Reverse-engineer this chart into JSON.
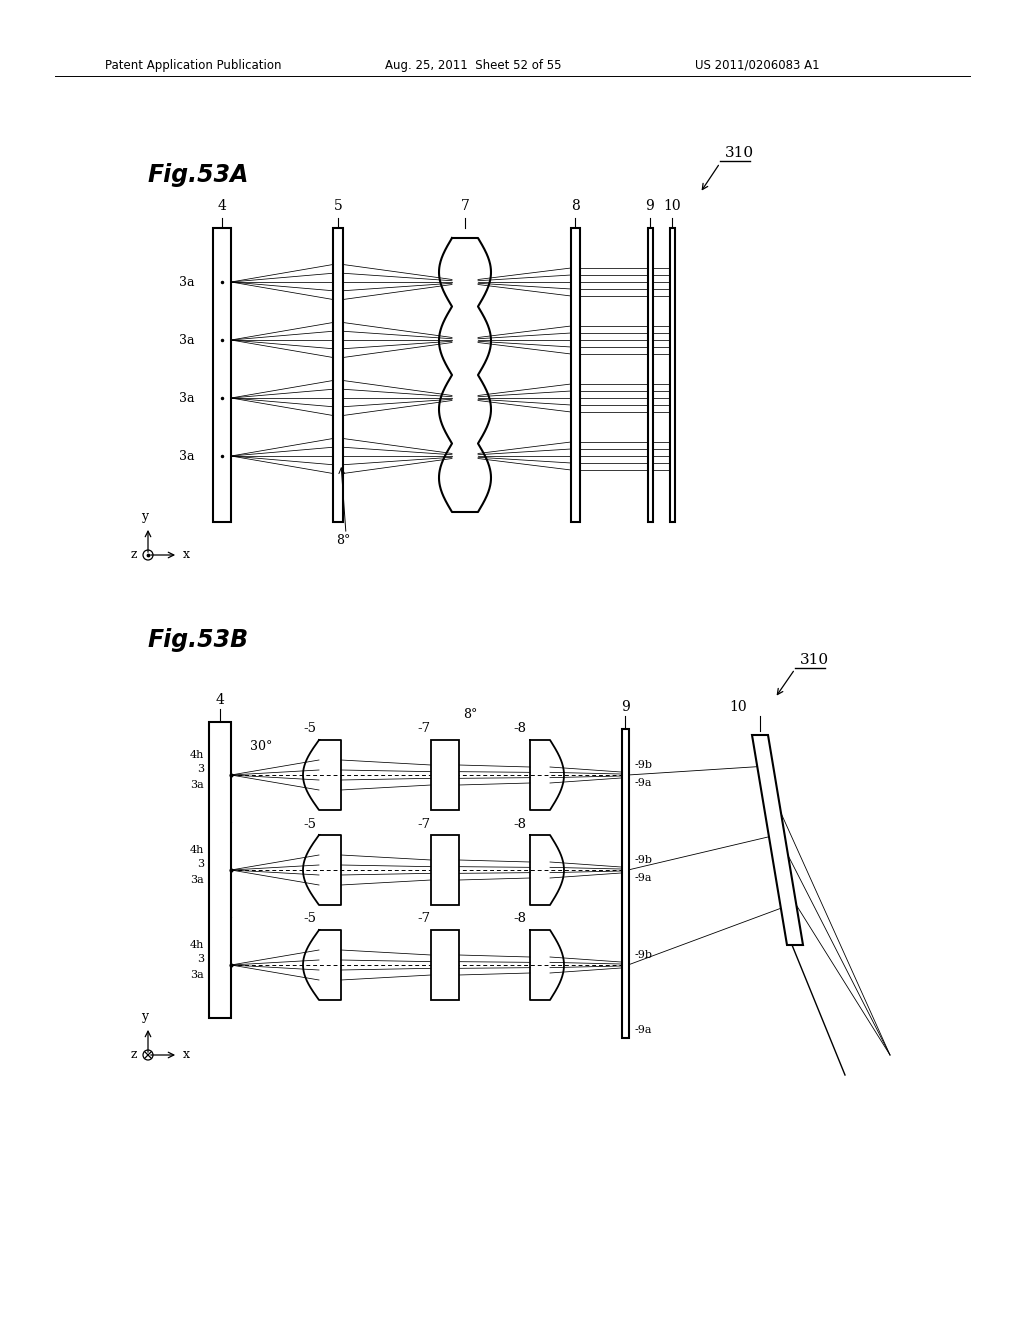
{
  "bg_color": "#ffffff",
  "header_left": "Patent Application Publication",
  "header_mid": "Aug. 25, 2011  Sheet 52 of 55",
  "header_right": "US 2011/0206083 A1",
  "fig_A_title": "Fig.53A",
  "fig_B_title": "Fig.53B",
  "label_310": "310"
}
